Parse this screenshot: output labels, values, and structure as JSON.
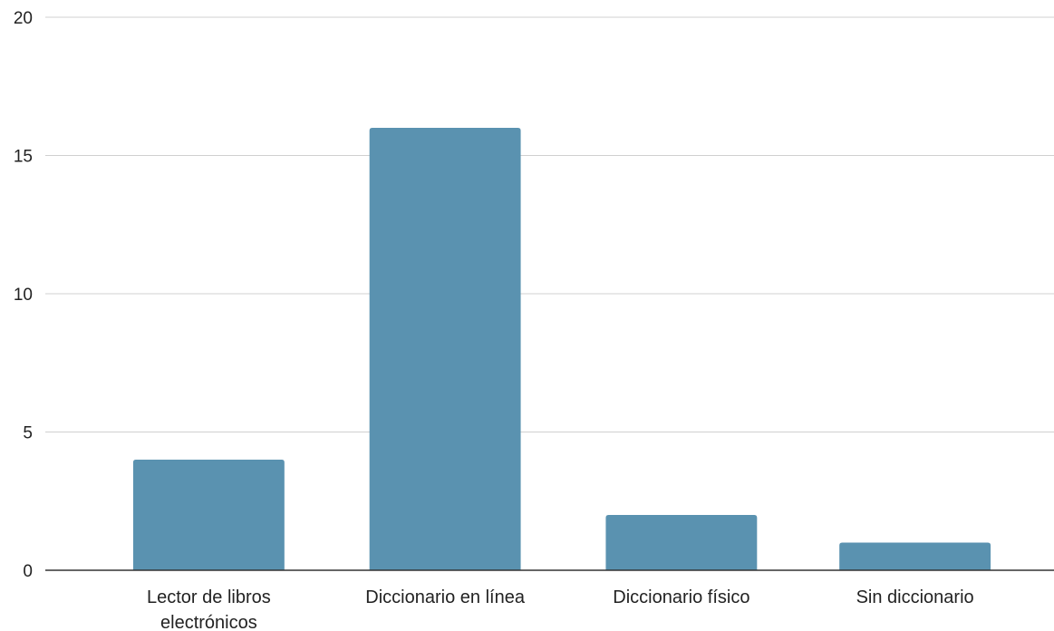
{
  "chart_data": {
    "type": "bar",
    "categories": [
      [
        "Lector de libros",
        "electrónicos"
      ],
      [
        "Diccionario en línea"
      ],
      [
        "Diccionario físico"
      ],
      [
        "Sin diccionario"
      ]
    ],
    "values": [
      4,
      16,
      2,
      1
    ],
    "title": "",
    "xlabel": "",
    "ylabel": "",
    "ylim": [
      0,
      20
    ],
    "yticks": [
      "0",
      "5",
      "10",
      "15",
      "20"
    ],
    "grid": true,
    "legend": "none",
    "colors": {
      "bar": "#5a92b0",
      "grid": "#d0d0d0",
      "axis": "#333333",
      "text": "#222222"
    }
  }
}
